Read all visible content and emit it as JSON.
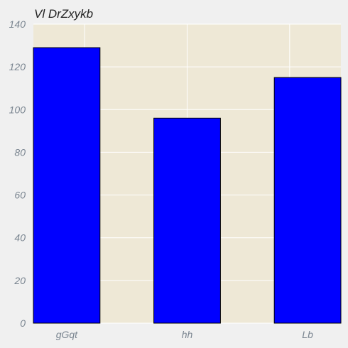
{
  "colors": {
    "page_background": "#f0f0f0",
    "plot_background": "#eee8d6",
    "grid": "#ffffff",
    "bar_fill": "#0000ff",
    "bar_edge": "#000000",
    "tick_label": "#7a8590",
    "title": "#222222"
  },
  "chart_data": {
    "type": "bar",
    "title": "Vl DrZxykb",
    "xlabel": "",
    "ylabel": "",
    "categories": [
      "gGqt",
      "hh",
      "Lb"
    ],
    "values": [
      129,
      96,
      115
    ],
    "ylim": [
      0,
      140
    ],
    "yticks": [
      0,
      20,
      40,
      60,
      80,
      100,
      120,
      140
    ],
    "grid": true,
    "legend": "none"
  }
}
